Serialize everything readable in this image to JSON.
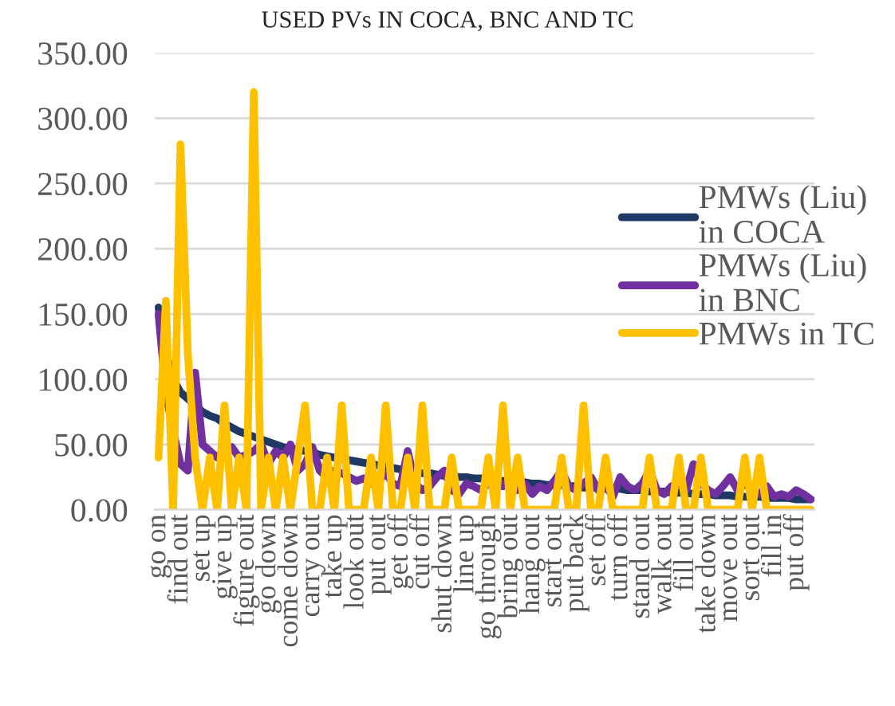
{
  "chart_data": {
    "type": "line",
    "title": "USED PVs IN COCA, BNC AND TC",
    "categories": [
      "go on",
      null,
      null,
      "find out",
      null,
      null,
      "set up",
      null,
      null,
      "give up",
      null,
      null,
      "figure out",
      null,
      null,
      "go down",
      null,
      null,
      "come down",
      null,
      null,
      "carry out",
      null,
      null,
      "take up",
      null,
      null,
      "look out",
      null,
      null,
      "put out",
      null,
      null,
      "get off",
      null,
      null,
      "cut off",
      null,
      null,
      "shut down",
      null,
      null,
      "line up",
      null,
      null,
      "go through",
      null,
      null,
      "bring out",
      null,
      null,
      "hang out",
      null,
      null,
      "start out",
      null,
      null,
      "put back",
      null,
      null,
      "set off",
      null,
      null,
      "turn off",
      null,
      null,
      "stand out",
      null,
      null,
      "walk out",
      null,
      null,
      "fill out",
      null,
      null,
      "take down",
      null,
      null,
      "move out",
      null,
      null,
      "sort out",
      null,
      null,
      "fill in",
      null,
      null,
      "put off",
      null,
      null
    ],
    "series": [
      {
        "name": "PMWs (Liu)\nin COCA",
        "color": "#203864",
        "values": [
          155,
          120,
          100,
          90,
          85,
          80,
          75,
          72,
          70,
          66,
          63,
          60,
          58,
          56,
          54,
          52,
          50,
          48,
          47,
          46,
          45,
          44,
          42,
          41,
          40,
          39,
          38,
          37,
          36,
          35,
          34,
          33,
          32,
          31,
          30,
          29,
          28,
          28,
          27,
          26,
          26,
          25,
          25,
          24,
          24,
          23,
          23,
          22,
          22,
          21,
          21,
          20,
          20,
          19,
          19,
          19,
          18,
          18,
          17,
          17,
          17,
          16,
          16,
          16,
          15,
          15,
          15,
          14,
          14,
          14,
          13,
          13,
          13,
          12,
          12,
          12,
          11,
          11,
          11,
          10,
          10,
          10,
          10,
          9,
          9,
          9,
          9,
          8,
          8,
          8
        ]
      },
      {
        "name": "PMWs (Liu)\nin BNC",
        "color": "#7030a0",
        "values": [
          150,
          90,
          60,
          35,
          30,
          105,
          50,
          45,
          40,
          45,
          48,
          40,
          42,
          45,
          50,
          35,
          45,
          40,
          50,
          30,
          35,
          48,
          30,
          25,
          30,
          28,
          25,
          22,
          24,
          20,
          22,
          28,
          20,
          18,
          45,
          20,
          15,
          18,
          25,
          30,
          15,
          12,
          20,
          18,
          15,
          20,
          22,
          18,
          25,
          15,
          20,
          12,
          18,
          15,
          22,
          30,
          18,
          15,
          20,
          25,
          15,
          18,
          10,
          25,
          18,
          15,
          20,
          30,
          15,
          12,
          18,
          20,
          15,
          35,
          20,
          15,
          12,
          18,
          25,
          15,
          20,
          15,
          12,
          18,
          10,
          12,
          10,
          15,
          12,
          8
        ]
      },
      {
        "name": "PMWs in TC",
        "color": "#ffc000",
        "values": [
          40,
          160,
          0,
          280,
          120,
          40,
          0,
          40,
          0,
          80,
          0,
          40,
          0,
          320,
          0,
          40,
          0,
          40,
          0,
          40,
          80,
          0,
          0,
          40,
          0,
          80,
          0,
          0,
          0,
          40,
          0,
          80,
          0,
          0,
          40,
          0,
          80,
          0,
          0,
          0,
          40,
          0,
          0,
          0,
          0,
          40,
          0,
          80,
          0,
          40,
          0,
          0,
          0,
          0,
          0,
          40,
          0,
          0,
          80,
          0,
          0,
          40,
          0,
          0,
          0,
          0,
          0,
          40,
          0,
          0,
          0,
          40,
          0,
          0,
          40,
          0,
          0,
          0,
          0,
          0,
          40,
          0,
          40,
          0,
          0,
          0,
          0,
          0,
          0,
          0
        ]
      }
    ],
    "ylim": [
      0,
      350
    ],
    "yticks": [
      {
        "value": 0,
        "label": "0.00"
      },
      {
        "value": 50,
        "label": "50.00"
      },
      {
        "value": 100,
        "label": "100.00"
      },
      {
        "value": 150,
        "label": "150.00"
      },
      {
        "value": 200,
        "label": "200.00"
      },
      {
        "value": 250,
        "label": "250.00"
      },
      {
        "value": 300,
        "label": "300.00"
      },
      {
        "value": 350,
        "label": "350.00"
      }
    ],
    "grid": "y",
    "legend": "right",
    "line_style": "solid",
    "marker": "none"
  }
}
